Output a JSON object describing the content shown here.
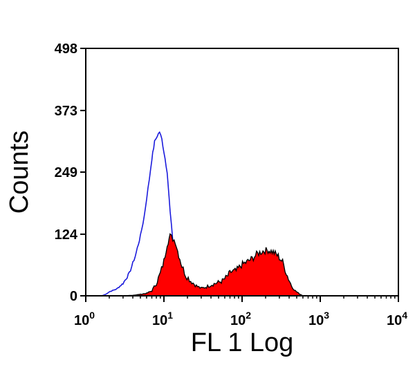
{
  "chart_data": {
    "type": "area",
    "title": "",
    "xlabel": "FL 1 Log",
    "ylabel": "Counts",
    "x_scale": "log",
    "xlim": [
      1,
      10000
    ],
    "ylim": [
      0,
      498
    ],
    "x_ticks": [
      {
        "value": 1,
        "base": "10",
        "exp": "0"
      },
      {
        "value": 10,
        "base": "10",
        "exp": "1"
      },
      {
        "value": 100,
        "base": "10",
        "exp": "2"
      },
      {
        "value": 1000,
        "base": "10",
        "exp": "3"
      },
      {
        "value": 10000,
        "base": "10",
        "exp": "4"
      }
    ],
    "y_ticks": [
      {
        "value": 0,
        "label": "0"
      },
      {
        "value": 124,
        "label": "124"
      },
      {
        "value": 249,
        "label": "249"
      },
      {
        "value": 373,
        "label": "373"
      },
      {
        "value": 498,
        "label": "498"
      }
    ],
    "grid": false,
    "legend": "none",
    "series": [
      {
        "style": "outline",
        "color": "#1a1adc",
        "x": [
          1.6,
          1.8,
          2.0,
          2.5,
          3.0,
          3.6,
          4.3,
          5.0,
          5.6,
          6.0,
          6.5,
          7.0,
          7.6,
          8.2,
          8.8,
          9.4,
          10.0,
          11.0,
          12.0,
          13.0,
          14.0,
          15.0,
          16.5,
          18.0,
          20.0,
          23.0,
          26.0,
          30.0,
          35.0
        ],
        "y": [
          0,
          3,
          8,
          14,
          25,
          45,
          80,
          120,
          160,
          195,
          235,
          275,
          310,
          322,
          330,
          315,
          290,
          250,
          170,
          110,
          80,
          55,
          30,
          18,
          10,
          6,
          4,
          2,
          0
        ]
      },
      {
        "style": "filled",
        "color": "#ff0000",
        "outline_color": "#000000",
        "x": [
          3.0,
          4.0,
          5.0,
          6.0,
          7.0,
          8.0,
          9.0,
          10.0,
          11.0,
          12.0,
          13.0,
          14.0,
          15.0,
          17.0,
          19.0,
          22.0,
          26.0,
          30.0,
          35.0,
          40.0,
          48.0,
          56.0,
          64.0,
          72.0,
          84.0,
          98.0,
          115.0,
          135.0,
          158.0,
          185.0,
          215.0,
          250.0,
          290.0,
          330.0,
          380.0,
          430.0,
          480.0,
          540.0,
          600.0
        ],
        "y": [
          0,
          1,
          3,
          5,
          10,
          25,
          45,
          70,
          105,
          120,
          115,
          110,
          90,
          60,
          42,
          30,
          20,
          15,
          18,
          22,
          26,
          30,
          38,
          48,
          50,
          62,
          68,
          75,
          85,
          90,
          92,
          88,
          80,
          68,
          40,
          20,
          10,
          4,
          0
        ]
      }
    ]
  }
}
